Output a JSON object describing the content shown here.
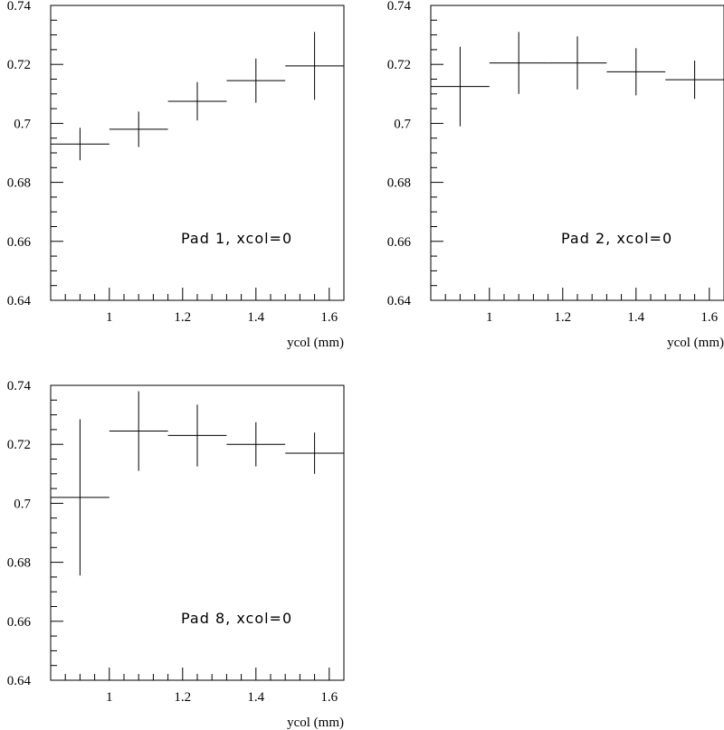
{
  "chart_data": [
    {
      "type": "scatter",
      "annotation": "Pad 1, xcol=0",
      "xlabel": "ycol (mm)",
      "ylabel": "",
      "xlim": [
        0.84,
        1.64
      ],
      "ylim": [
        0.64,
        0.74
      ],
      "x_ticks": [
        "1",
        "1.2",
        "1.4",
        "1.6"
      ],
      "y_ticks": [
        "0.64",
        "0.66",
        "0.68",
        "0.7",
        "0.72",
        "0.74"
      ],
      "series": [
        {
          "x": [
            0.92,
            1.08,
            1.24,
            1.4,
            1.56
          ],
          "x_half_width": [
            0.08,
            0.08,
            0.08,
            0.08,
            0.08
          ],
          "y": [
            0.693,
            0.698,
            0.7075,
            0.7145,
            0.7195
          ],
          "y_err": [
            0.0055,
            0.006,
            0.0065,
            0.0075,
            0.0115
          ]
        }
      ]
    },
    {
      "type": "scatter",
      "annotation": "Pad 2, xcol=0",
      "xlabel": "ycol (mm)",
      "ylabel": "",
      "xlim": [
        0.84,
        1.64
      ],
      "ylim": [
        0.64,
        0.74
      ],
      "x_ticks": [
        "1",
        "1.2",
        "1.4",
        "1.6"
      ],
      "y_ticks": [
        "0.64",
        "0.66",
        "0.68",
        "0.7",
        "0.72",
        "0.74"
      ],
      "series": [
        {
          "x": [
            0.92,
            1.08,
            1.24,
            1.4,
            1.56
          ],
          "x_half_width": [
            0.08,
            0.08,
            0.08,
            0.08,
            0.08
          ],
          "y": [
            0.7125,
            0.7205,
            0.7205,
            0.7175,
            0.7148
          ],
          "y_err": [
            0.0135,
            0.0105,
            0.009,
            0.008,
            0.0065
          ]
        }
      ]
    },
    {
      "type": "scatter",
      "annotation": "Pad 8, xcol=0",
      "xlabel": "ycol (mm)",
      "ylabel": "",
      "xlim": [
        0.84,
        1.64
      ],
      "ylim": [
        0.64,
        0.74
      ],
      "x_ticks": [
        "1",
        "1.2",
        "1.4",
        "1.6"
      ],
      "y_ticks": [
        "0.64",
        "0.66",
        "0.68",
        "0.7",
        "0.72",
        "0.74"
      ],
      "series": [
        {
          "x": [
            0.92,
            1.08,
            1.24,
            1.4,
            1.56
          ],
          "x_half_width": [
            0.08,
            0.08,
            0.08,
            0.08,
            0.08
          ],
          "y": [
            0.702,
            0.7245,
            0.723,
            0.72,
            0.717
          ],
          "y_err": [
            0.0265,
            0.0135,
            0.0105,
            0.0075,
            0.007
          ]
        }
      ]
    }
  ]
}
